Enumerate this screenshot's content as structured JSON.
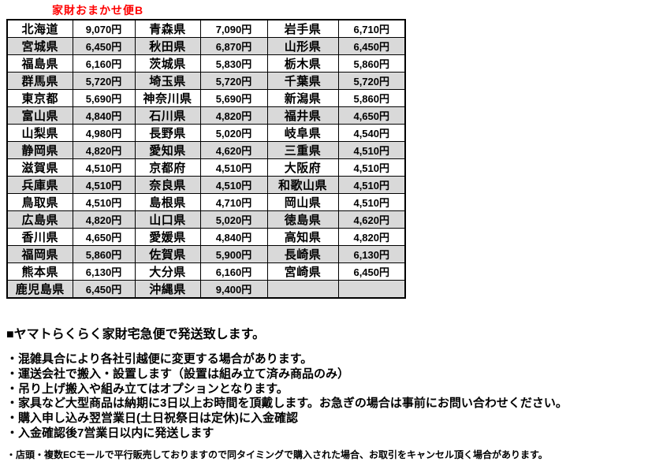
{
  "title": "家財おまかせ便B",
  "colors": {
    "title_red": "#ff0000",
    "row_shade": "#d9d9d9",
    "border": "#000000"
  },
  "table": {
    "columns": [
      "prefecture",
      "price",
      "prefecture",
      "price",
      "prefecture",
      "price"
    ],
    "rows": [
      [
        "北海道",
        "9,070円",
        "青森県",
        "7,090円",
        "岩手県",
        "6,710円"
      ],
      [
        "宮城県",
        "6,450円",
        "秋田県",
        "6,870円",
        "山形県",
        "6,450円"
      ],
      [
        "福島県",
        "6,160円",
        "茨城県",
        "5,830円",
        "栃木県",
        "5,860円"
      ],
      [
        "群馬県",
        "5,720円",
        "埼玉県",
        "5,720円",
        "千葉県",
        "5,720円"
      ],
      [
        "東京都",
        "5,690円",
        "神奈川県",
        "5,690円",
        "新潟県",
        "5,860円"
      ],
      [
        "富山県",
        "4,840円",
        "石川県",
        "4,820円",
        "福井県",
        "4,650円"
      ],
      [
        "山梨県",
        "4,980円",
        "長野県",
        "5,020円",
        "岐阜県",
        "4,540円"
      ],
      [
        "静岡県",
        "4,820円",
        "愛知県",
        "4,620円",
        "三重県",
        "4,510円"
      ],
      [
        "滋賀県",
        "4,510円",
        "京都府",
        "4,510円",
        "大阪府",
        "4,510円"
      ],
      [
        "兵庫県",
        "4,510円",
        "奈良県",
        "4,510円",
        "和歌山県",
        "4,510円"
      ],
      [
        "鳥取県",
        "4,510円",
        "島根県",
        "4,710円",
        "岡山県",
        "4,510円"
      ],
      [
        "広島県",
        "4,820円",
        "山口県",
        "5,020円",
        "徳島県",
        "4,620円"
      ],
      [
        "香川県",
        "4,650円",
        "愛媛県",
        "4,840円",
        "高知県",
        "4,820円"
      ],
      [
        "福岡県",
        "5,860円",
        "佐賀県",
        "5,900円",
        "長崎県",
        "6,130円"
      ],
      [
        "熊本県",
        "6,130円",
        "大分県",
        "6,160円",
        "宮崎県",
        "6,450円"
      ],
      [
        "鹿児島県",
        "6,450円",
        "沖縄県",
        "9,400円",
        "",
        ""
      ]
    ]
  },
  "notes": {
    "heading": "■ヤマトらくらく家財宅急便で発送致します。",
    "bullets": [
      "・混雑具合により各社引越便に変更する場合があります。",
      "・運送会社で搬入・設置します（設置は組み立て済み商品のみ）",
      "・吊り上げ搬入や組み立てはオプションとなります。",
      "・家具など大型商品は納期に3日以上お時間を頂戴します。お急ぎの場合は事前にお問い合わせください。",
      "・購入申し込み翌営業日(土日祝祭日は定休)に入金確認",
      "・入金確認後7営業日以内に発送します"
    ],
    "footnote": "・店頭・複数ECモールで平行販売しておりますので同タイミングで購入された場合、お取引をキャンセル頂く場合があります。"
  }
}
